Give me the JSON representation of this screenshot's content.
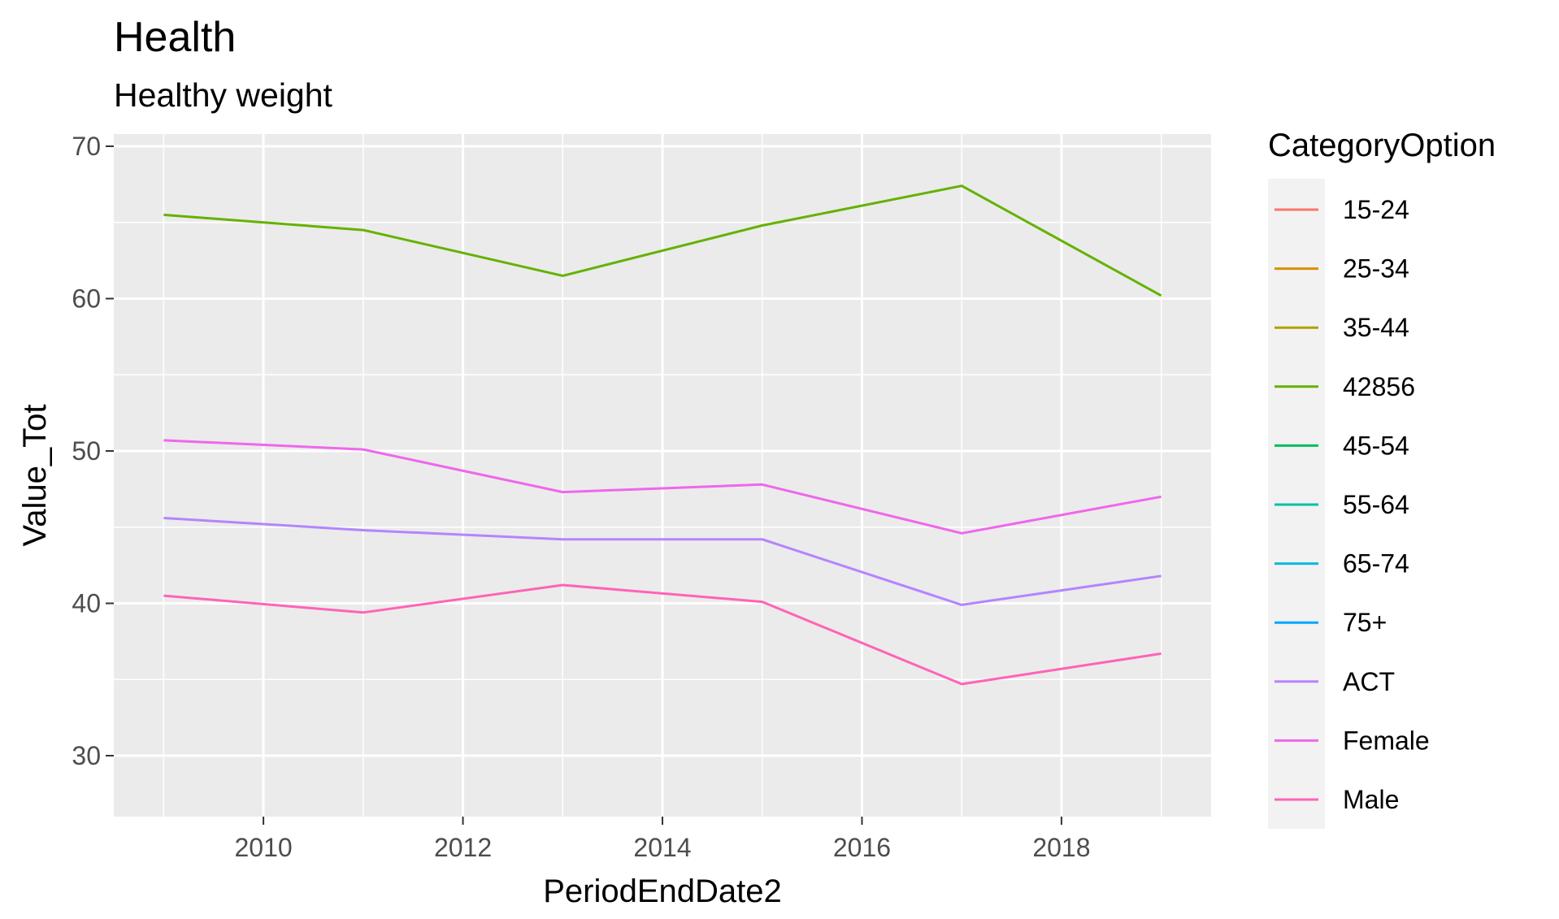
{
  "chart_data": {
    "type": "line",
    "title": "Health",
    "subtitle": "Healthy weight",
    "xlabel": "PeriodEndDate2",
    "ylabel": "Value_Tot",
    "xlim": [
      2008.5,
      2019.5
    ],
    "ylim": [
      26,
      70.8
    ],
    "x_ticks": [
      2010,
      2012,
      2014,
      2016,
      2018
    ],
    "y_ticks": [
      30,
      40,
      50,
      60,
      70
    ],
    "grid": true,
    "legend_title": "CategoryOption",
    "legend_position": "right",
    "legend": [
      {
        "name": "15-24",
        "color": "#F8766D"
      },
      {
        "name": "25-34",
        "color": "#DB8E00"
      },
      {
        "name": "35-44",
        "color": "#AEA200"
      },
      {
        "name": "42856",
        "color": "#64B200"
      },
      {
        "name": "45-54",
        "color": "#00BD5C"
      },
      {
        "name": "55-64",
        "color": "#00C1A7"
      },
      {
        "name": "65-74",
        "color": "#00BADE"
      },
      {
        "name": "75+",
        "color": "#00A6FF"
      },
      {
        "name": "ACT",
        "color": "#B385FF"
      },
      {
        "name": "Female",
        "color": "#EF67EB"
      },
      {
        "name": "Male",
        "color": "#FF63B6"
      }
    ],
    "series": [
      {
        "name": "42856",
        "color": "#64B200",
        "x": [
          2009,
          2011,
          2013,
          2015,
          2017,
          2019
        ],
        "values": [
          65.5,
          64.5,
          61.5,
          64.8,
          67.4,
          60.2
        ]
      },
      {
        "name": "Female",
        "color": "#EF67EB",
        "x": [
          2009,
          2011,
          2013,
          2015,
          2017,
          2019
        ],
        "values": [
          50.7,
          50.1,
          47.3,
          47.8,
          44.6,
          47.0
        ]
      },
      {
        "name": "ACT",
        "color": "#B385FF",
        "x": [
          2009,
          2011,
          2013,
          2015,
          2017,
          2019
        ],
        "values": [
          45.6,
          44.8,
          44.2,
          44.2,
          39.9,
          41.8
        ]
      },
      {
        "name": "Male",
        "color": "#FF63B6",
        "x": [
          2009,
          2011,
          2013,
          2015,
          2017,
          2019
        ],
        "values": [
          40.5,
          39.4,
          41.2,
          40.1,
          34.7,
          36.7
        ]
      }
    ]
  }
}
